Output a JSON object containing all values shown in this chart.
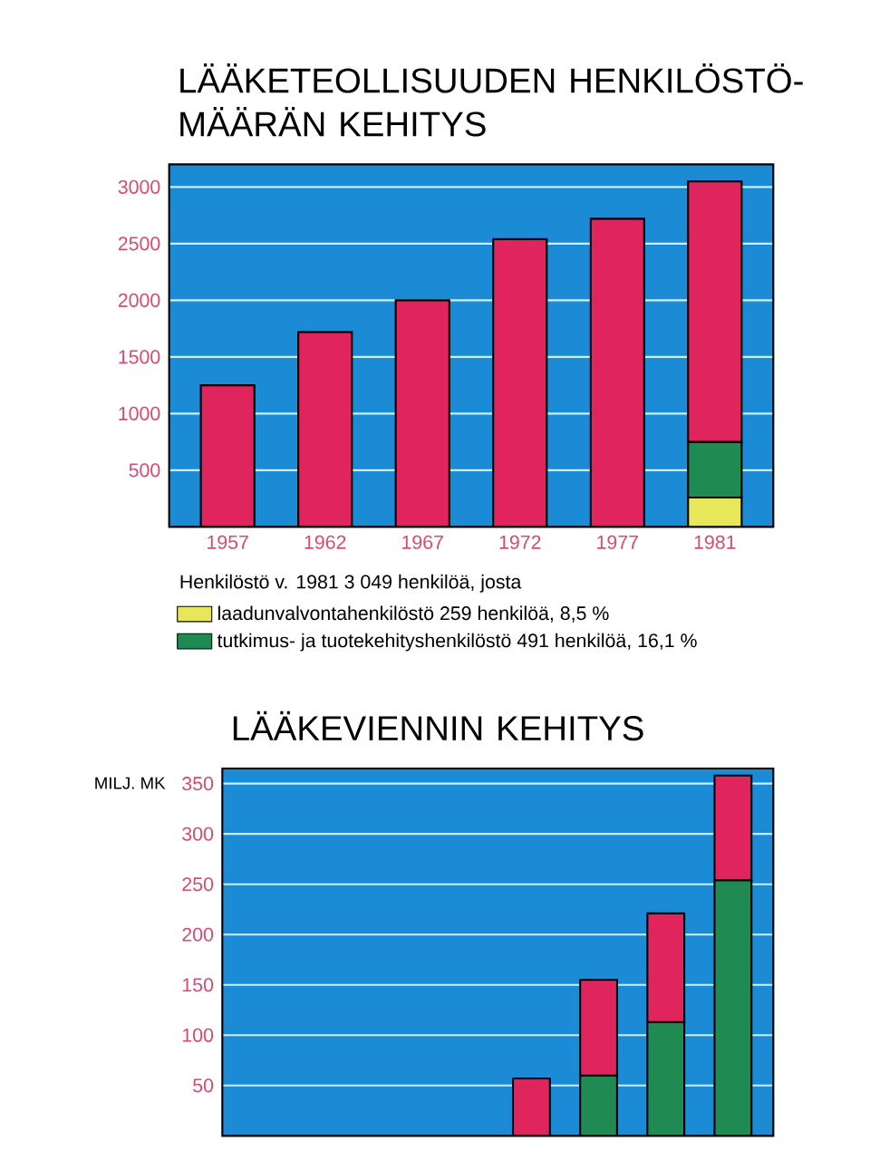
{
  "chart_data": [
    {
      "type": "bar",
      "title": "LÄÄKETEOLLISUUDEN HENKILÖSTÖ-MÄÄRÄN KEHITYS",
      "categories": [
        "1957",
        "1962",
        "1967",
        "1972",
        "1977",
        "1981"
      ],
      "stacked": true,
      "series": [
        {
          "name": "laadunvalvontahenkilöstö 259 henkilöä, 8,5 %",
          "color": "#e8e65a",
          "values": [
            null,
            null,
            null,
            null,
            null,
            259
          ]
        },
        {
          "name": "tutkimus- ja tuotekehityshenkilöstö 491 henkilöä, 16,1 %",
          "color": "#1f8a52",
          "values": [
            null,
            null,
            null,
            null,
            null,
            491
          ]
        },
        {
          "color": "#e0245e",
          "values": [
            1250,
            1720,
            2000,
            2540,
            2720,
            2300
          ]
        }
      ],
      "ylim": [
        0,
        3200
      ],
      "yticks": [
        500,
        1000,
        1500,
        2000,
        2500,
        3000
      ],
      "grid": "y",
      "legend": "bottom",
      "annotations": [
        "Henkilöstö v. 1981 3 049 henkilöä, josta"
      ]
    },
    {
      "type": "bar",
      "title": "LÄÄKEVIENNIN KEHITYS",
      "ylabel": "MILJ. MK",
      "categories": [
        null,
        null,
        null,
        null,
        null,
        null,
        null,
        null
      ],
      "stacked": true,
      "series": [
        {
          "color": "#1f8a52",
          "values": [
            null,
            null,
            null,
            null,
            null,
            60,
            113,
            254
          ]
        },
        {
          "color": "#e0245e",
          "values": [
            null,
            null,
            null,
            null,
            57,
            95,
            108,
            104
          ]
        }
      ],
      "ylim": [
        0,
        365
      ],
      "yticks": [
        50,
        100,
        150,
        200,
        250,
        300,
        350
      ],
      "grid": "y"
    }
  ]
}
